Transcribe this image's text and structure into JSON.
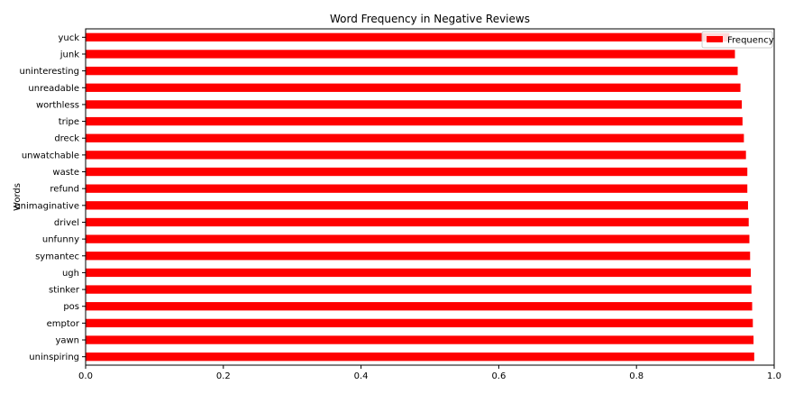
{
  "chart_data": {
    "type": "bar",
    "orientation": "horizontal",
    "title": "Word Frequency in Negative Reviews",
    "xlabel": "",
    "ylabel": "Words",
    "xlim": [
      0.0,
      1.0
    ],
    "x_ticks": [
      "0.0",
      "0.2",
      "0.4",
      "0.6",
      "0.8",
      "1.0"
    ],
    "grid": false,
    "legend_position": "top-right",
    "categories": [
      "yuck",
      "junk",
      "uninteresting",
      "unreadable",
      "worthless",
      "tripe",
      "dreck",
      "unwatchable",
      "waste",
      "refund",
      "unimaginative",
      "drivel",
      "unfunny",
      "symantec",
      "ugh",
      "stinker",
      "pos",
      "emptor",
      "yawn",
      "uninspiring"
    ],
    "series": [
      {
        "name": "Frequency",
        "color": "#ff0000",
        "values": [
          0.935,
          0.943,
          0.947,
          0.951,
          0.953,
          0.954,
          0.956,
          0.959,
          0.961,
          0.961,
          0.962,
          0.963,
          0.964,
          0.965,
          0.966,
          0.967,
          0.968,
          0.969,
          0.97,
          0.971
        ]
      }
    ]
  }
}
